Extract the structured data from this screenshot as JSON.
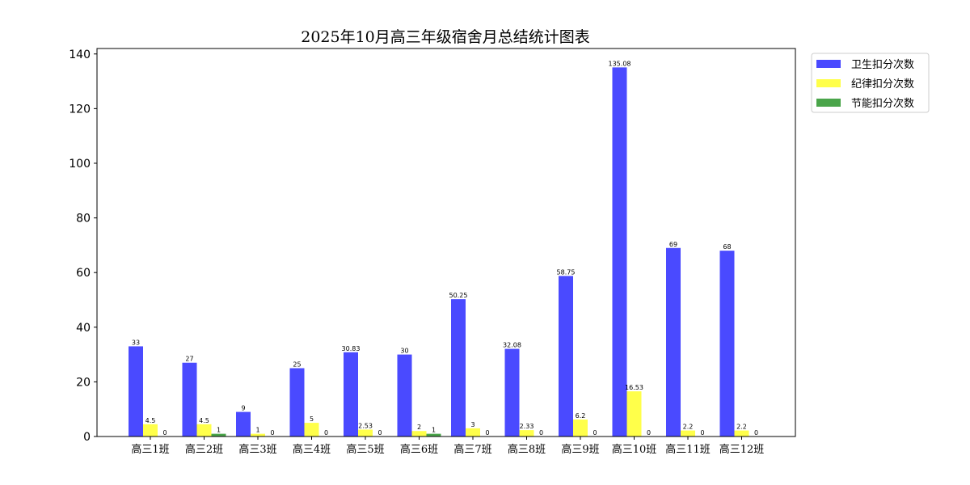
{
  "chart_data": {
    "type": "bar",
    "title": "2025年10月高三年级宿舍月总结统计图表",
    "xlabel": "",
    "ylabel": "",
    "ylim": [
      0,
      142
    ],
    "yticks": [
      0,
      20,
      40,
      60,
      80,
      100,
      120,
      140
    ],
    "grid": false,
    "legend_position": "upper-right-outside",
    "categories": [
      "高三1班",
      "高三2班",
      "高三3班",
      "高三4班",
      "高三5班",
      "高三6班",
      "高三7班",
      "高三8班",
      "高三9班",
      "高三10班",
      "高三11班",
      "高三12班"
    ],
    "series": [
      {
        "name": "卫生扣分次数",
        "color": "#4a4aff",
        "values": [
          33,
          27,
          9,
          25,
          30.83,
          30,
          50.25,
          32.08,
          58.75,
          135.08,
          69,
          68
        ],
        "labels": [
          "33",
          "27",
          "9",
          "25",
          "30.83",
          "30",
          "50.25",
          "32.08",
          "58.75",
          "135.08",
          "69",
          "68"
        ]
      },
      {
        "name": "纪律扣分次数",
        "color": "#ffff4a",
        "values": [
          4.5,
          4.5,
          1,
          5,
          2.53,
          2,
          3,
          2.33,
          6.2,
          16.53,
          2.2,
          2.2
        ],
        "labels": [
          "4.5",
          "4.5",
          "1",
          "5",
          "2.53",
          "2",
          "3",
          "2.33",
          "6.2",
          "16.53",
          "2.2",
          "2.2"
        ]
      },
      {
        "name": "节能扣分次数",
        "color": "#4aa54a",
        "values": [
          0,
          1,
          0,
          0,
          0,
          1,
          0,
          0,
          0,
          0,
          0,
          0
        ],
        "labels": [
          "0",
          "1",
          "0",
          "0",
          "0",
          "1",
          "0",
          "0",
          "0",
          "0",
          "0",
          "0"
        ]
      }
    ]
  }
}
